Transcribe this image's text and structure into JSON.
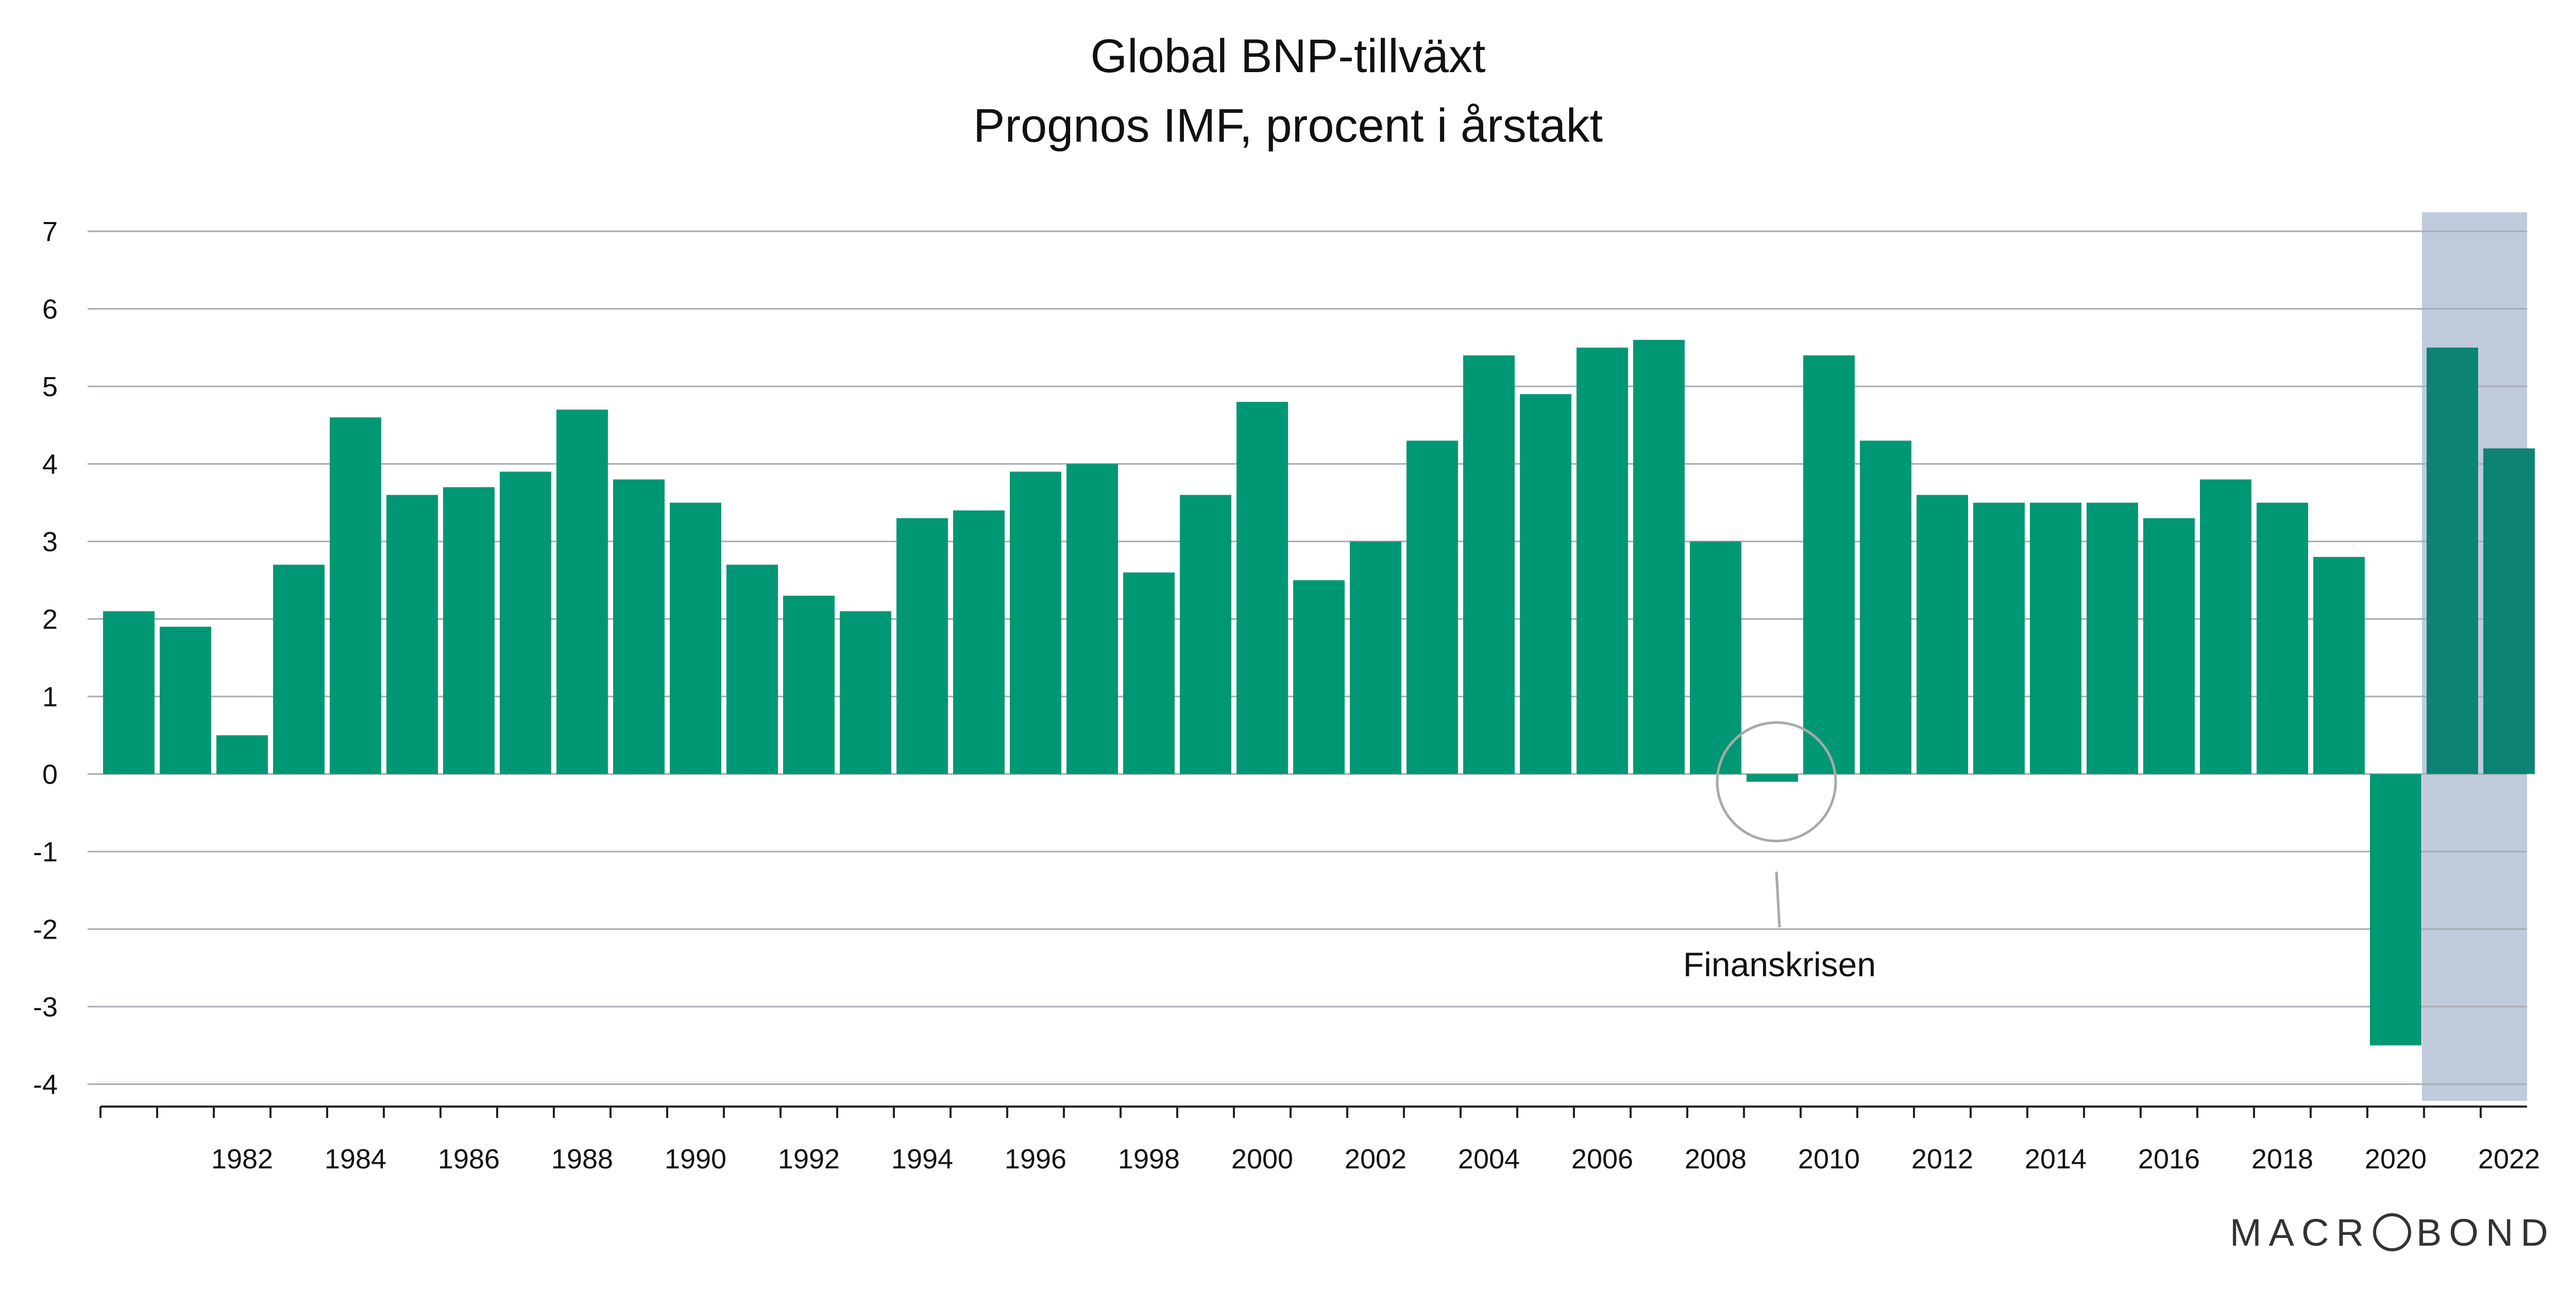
{
  "chart_data": {
    "type": "bar",
    "title": "Global BNP-tillväxt",
    "subtitle": "Prognos IMF, procent i årstakt",
    "xlabel": "",
    "ylabel": "",
    "ylim": [
      -4.25,
      7.3
    ],
    "y_ticks": [
      -4,
      -3,
      -2,
      -1,
      0,
      1,
      2,
      3,
      4,
      5,
      6,
      7
    ],
    "x_tick_labels": [
      "1982",
      "1984",
      "1986",
      "1988",
      "1990",
      "1992",
      "1994",
      "1996",
      "1998",
      "2000",
      "2002",
      "2004",
      "2006",
      "2008",
      "2010",
      "2012",
      "2014",
      "2016",
      "2018",
      "2020",
      "2022"
    ],
    "grid": true,
    "categories": [
      "1980",
      "1981",
      "1982",
      "1983",
      "1984",
      "1985",
      "1986",
      "1987",
      "1988",
      "1989",
      "1990",
      "1991",
      "1992",
      "1993",
      "1994",
      "1995",
      "1996",
      "1997",
      "1998",
      "1999",
      "2000",
      "2001",
      "2002",
      "2003",
      "2004",
      "2005",
      "2006",
      "2007",
      "2008",
      "2009",
      "2010",
      "2011",
      "2012",
      "2013",
      "2014",
      "2015",
      "2016",
      "2017",
      "2018",
      "2019",
      "2020",
      "2021",
      "2022"
    ],
    "values": [
      2.1,
      1.9,
      0.5,
      2.7,
      4.6,
      3.6,
      3.7,
      3.9,
      4.7,
      3.8,
      3.5,
      2.7,
      2.3,
      2.1,
      3.3,
      3.4,
      3.9,
      4.0,
      2.6,
      3.6,
      4.8,
      2.5,
      3.0,
      4.3,
      5.4,
      4.9,
      5.5,
      5.6,
      3.0,
      -0.1,
      5.4,
      4.3,
      3.6,
      3.5,
      3.5,
      3.5,
      3.3,
      3.8,
      3.5,
      2.8,
      -3.5,
      5.5,
      4.2
    ],
    "forecast_categories": [
      "2021",
      "2022"
    ],
    "colors": {
      "bar": "#009874",
      "forecast_bar": "#0d8374",
      "forecast_shade": "#bfcbdb",
      "grid": "#a7abb2",
      "axis": "#222222",
      "annotation": "#a9a9a9"
    },
    "annotation": {
      "label": "Finanskrisen",
      "category": "2009"
    },
    "brand": {
      "left": "MACR",
      "right": "BOND",
      "logo_icon": "circle-o-icon"
    }
  }
}
